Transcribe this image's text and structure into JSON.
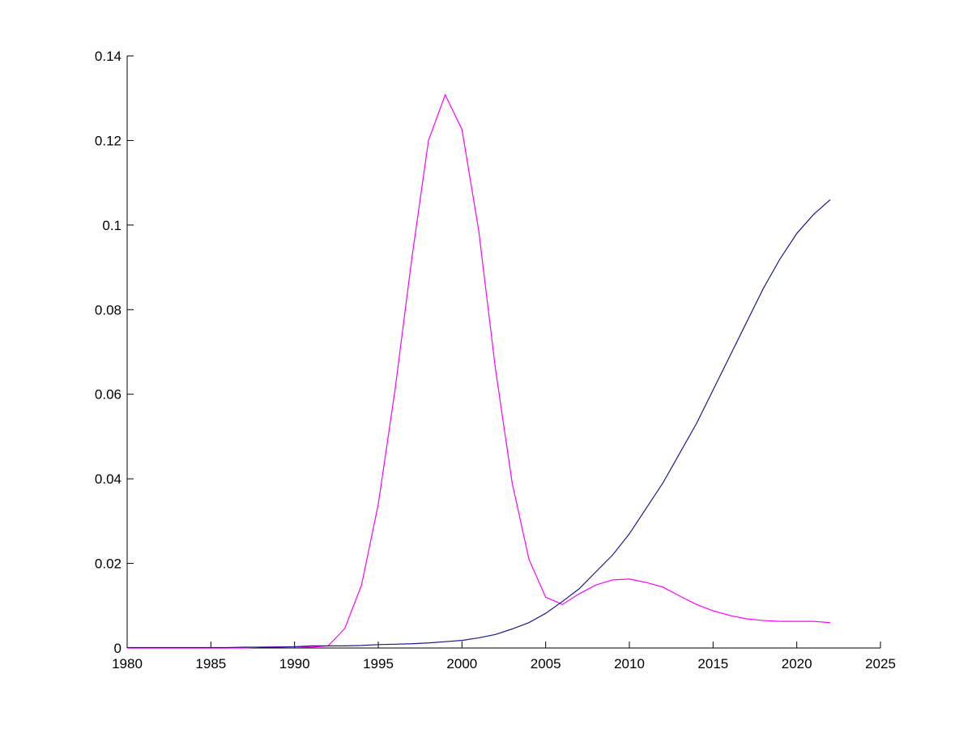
{
  "chart_data": {
    "type": "line",
    "x": [
      1980,
      1981,
      1982,
      1983,
      1984,
      1985,
      1986,
      1987,
      1988,
      1989,
      1990,
      1991,
      1992,
      1993,
      1994,
      1995,
      1996,
      1997,
      1998,
      1999,
      2000,
      2001,
      2002,
      2003,
      2004,
      2005,
      2006,
      2007,
      2008,
      2009,
      2010,
      2011,
      2012,
      2013,
      2014,
      2015,
      2016,
      2017,
      2018,
      2019,
      2020,
      2021,
      2022
    ],
    "series": [
      {
        "color": "#ff00ff",
        "values": [
          0,
          0,
          0,
          0,
          0,
          0,
          0,
          0,
          0.0002,
          0.0003,
          0.0003,
          0.0002,
          0.0005,
          0.0046,
          0.0149,
          0.034,
          0.061,
          0.092,
          0.12,
          0.1308,
          0.1226,
          0.0987,
          0.066,
          0.039,
          0.021,
          0.012,
          0.0103,
          0.0128,
          0.0149,
          0.0161,
          0.0163,
          0.0155,
          0.0144,
          0.0123,
          0.0103,
          0.0088,
          0.0077,
          0.0069,
          0.0065,
          0.0063,
          0.0063,
          0.0063,
          0.006
        ]
      },
      {
        "color": "#1a1a8c",
        "values": [
          0.0001,
          0.0001,
          0.0001,
          0.0001,
          0.0001,
          0.0001,
          0.0001,
          0.0002,
          0.0002,
          0.0002,
          0.0003,
          0.0005,
          0.0005,
          0.0005,
          0.0006,
          0.0008,
          0.0009,
          0.001,
          0.0012,
          0.0015,
          0.0018,
          0.0024,
          0.0032,
          0.0045,
          0.006,
          0.0082,
          0.011,
          0.014,
          0.018,
          0.022,
          0.027,
          0.033,
          0.039,
          0.046,
          0.053,
          0.061,
          0.069,
          0.077,
          0.085,
          0.092,
          0.098,
          0.1025,
          0.106
        ]
      }
    ],
    "xlim": [
      1980,
      2025
    ],
    "xticks": [
      1980,
      1985,
      1990,
      1995,
      2000,
      2005,
      2010,
      2015,
      2020,
      2025
    ],
    "ylim": [
      0,
      0.14
    ],
    "yticks": [
      0,
      0.02,
      0.04,
      0.06,
      0.08,
      0.1,
      0.12,
      0.14
    ]
  }
}
